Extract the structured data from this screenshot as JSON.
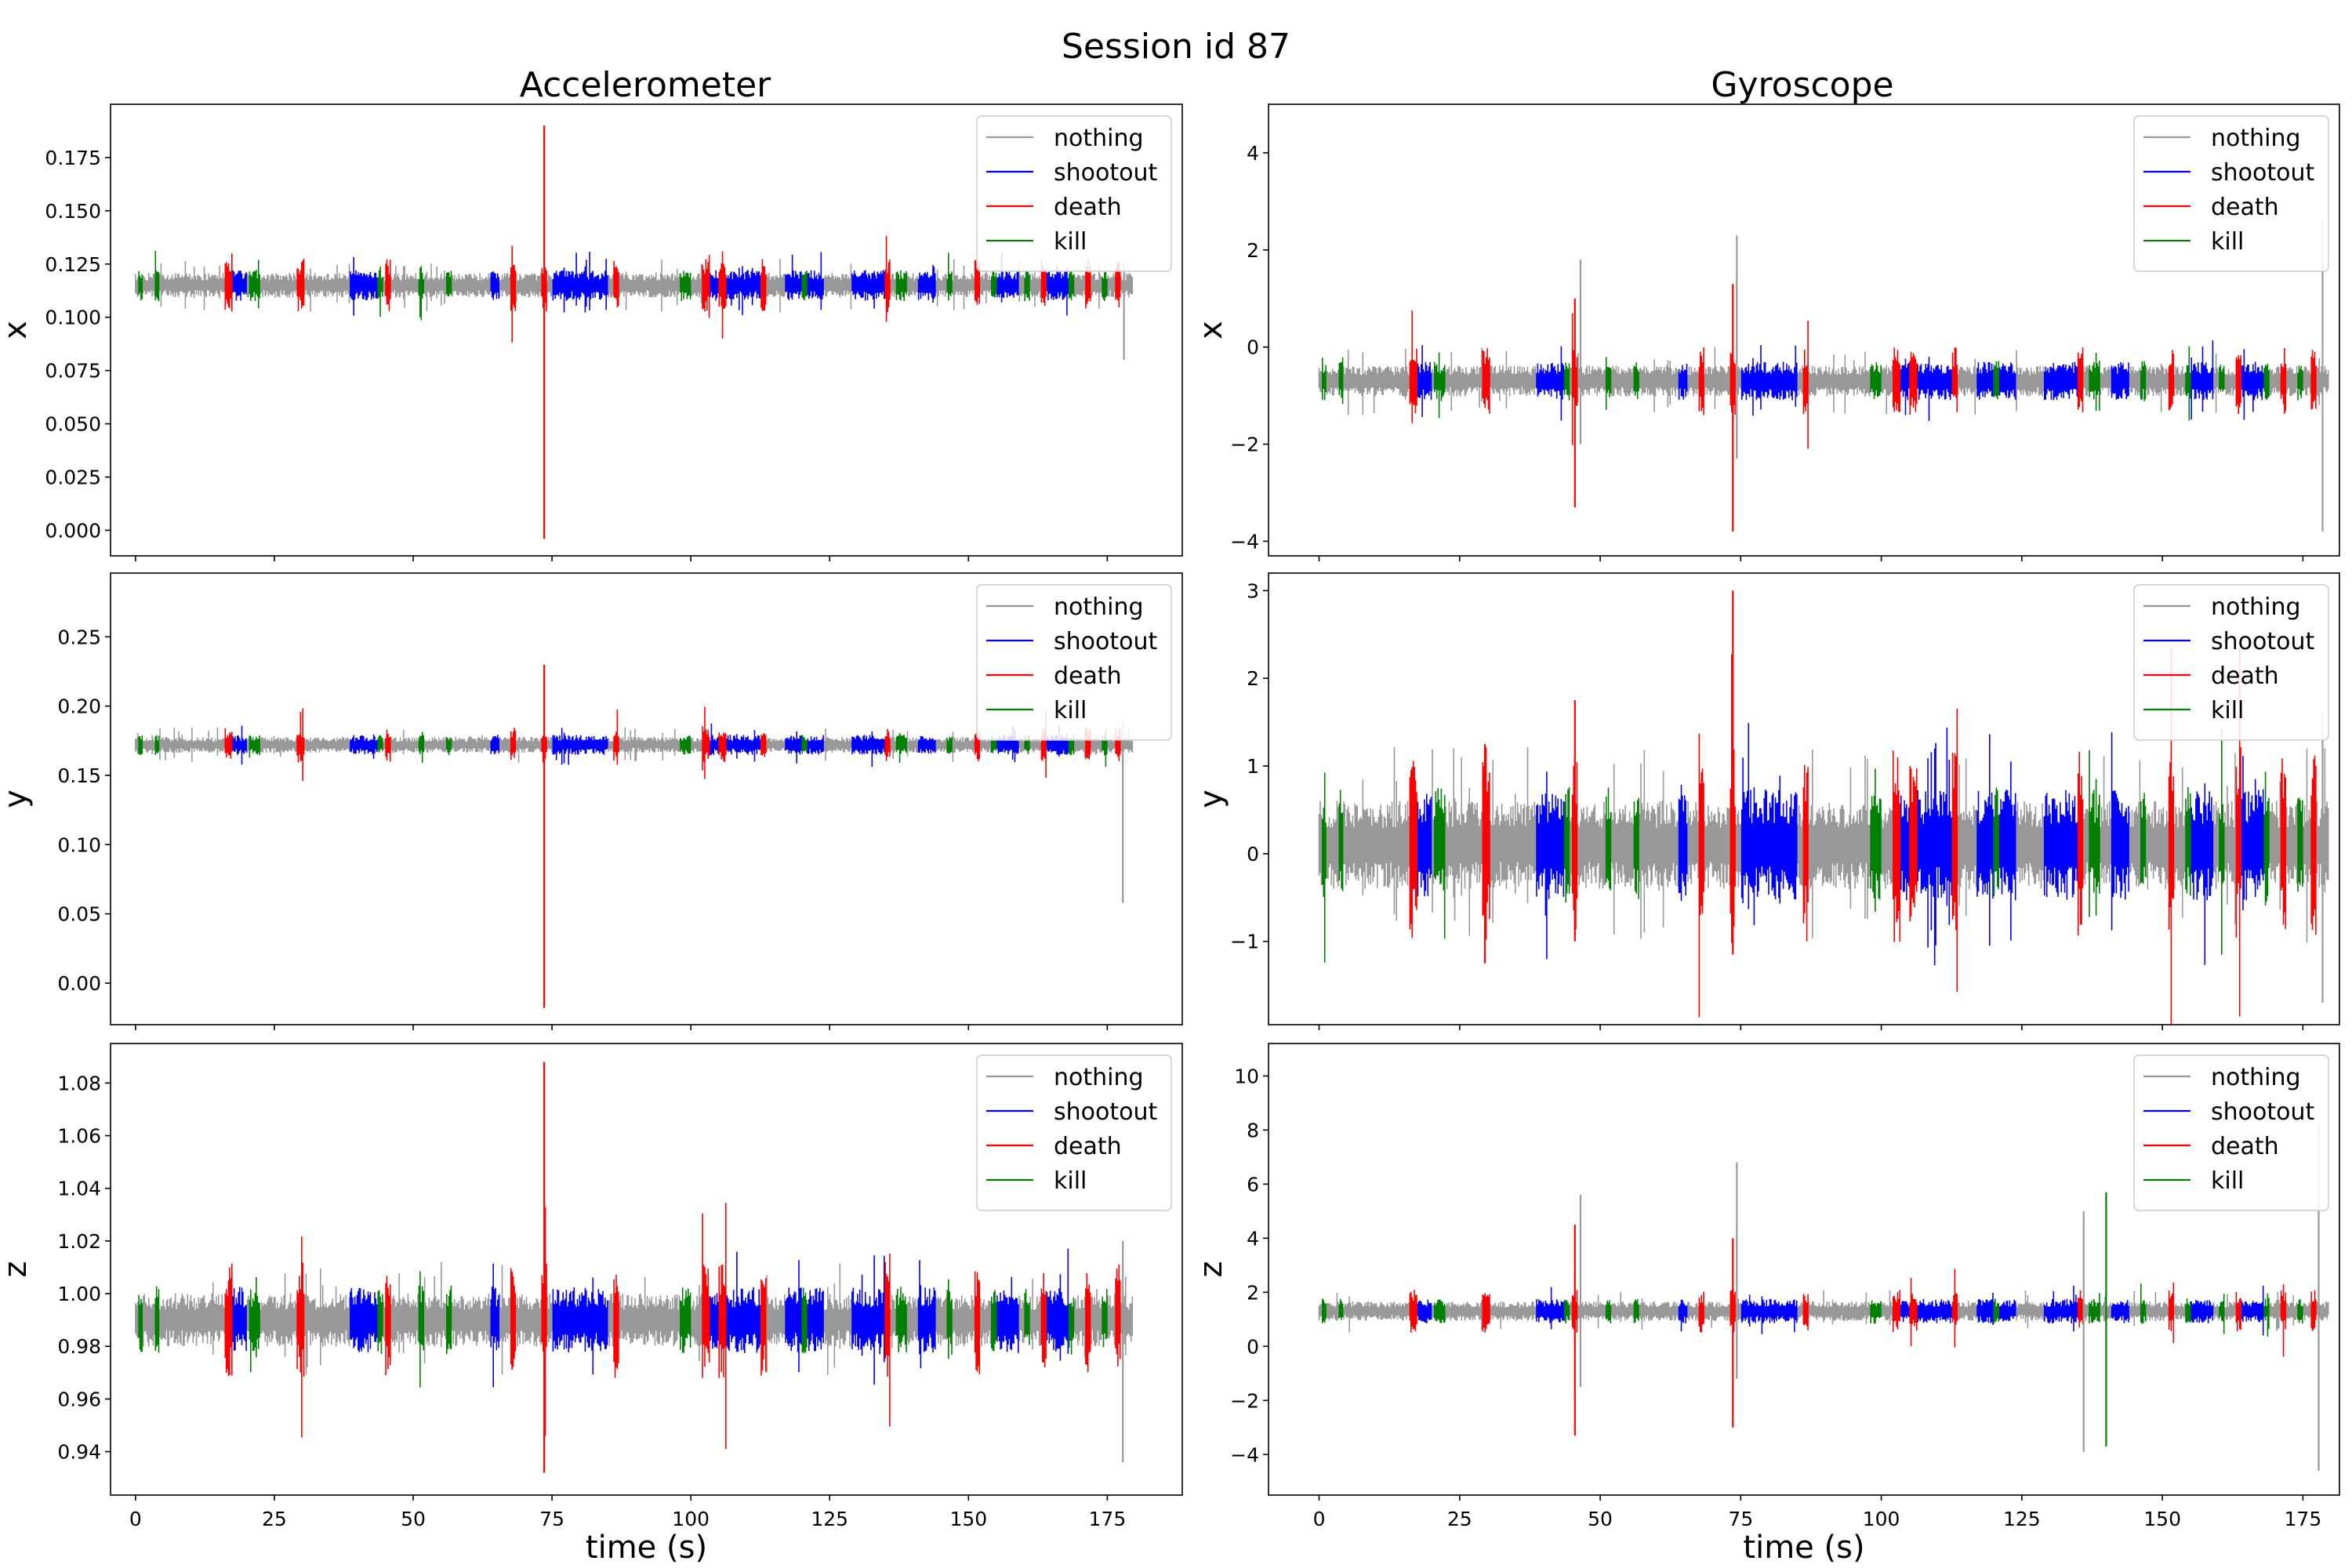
{
  "title": "Session id 87",
  "columns": [
    "Accelerometer",
    "Gyroscope"
  ],
  "colors": {
    "nothing": "#999999",
    "shootout": "#0000ff",
    "death": "#ff0000",
    "kill": "#008000"
  },
  "chart_data": [
    {
      "type": "line",
      "sensor": "Accelerometer",
      "ylabel": "x",
      "xlabel": "",
      "xlim": [
        -4.5,
        188.5
      ],
      "xticks": [
        0,
        25,
        50,
        75,
        100,
        125,
        150,
        175
      ],
      "xticklabels_shown": false,
      "ylim": [
        -0.012,
        0.2
      ],
      "yticks": [
        0.0,
        0.025,
        0.05,
        0.075,
        0.1,
        0.125,
        0.15,
        0.175
      ],
      "yticklabels": [
        "0.000",
        "0.025",
        "0.050",
        "0.075",
        "0.100",
        "0.125",
        "0.150",
        "0.175"
      ],
      "baseline": 0.115,
      "noise": 0.004,
      "legend": [
        "nothing",
        "shootout",
        "death",
        "kill"
      ],
      "legend_loc": "upper right",
      "spikes": [
        {
          "t": 73.6,
          "max": 0.19,
          "min": -0.004,
          "class": "death"
        },
        {
          "t": 178,
          "max": 0.125,
          "min": 0.08,
          "class": "nothing"
        }
      ]
    },
    {
      "type": "line",
      "sensor": "Gyroscope",
      "ylabel": "x",
      "xlabel": "",
      "xlim": [
        -9,
        181.5
      ],
      "xticks": [
        0,
        25,
        50,
        75,
        100,
        125,
        150,
        175
      ],
      "xticklabels_shown": false,
      "ylim": [
        -4.3,
        5.0
      ],
      "yticks": [
        -4,
        -2,
        0,
        2,
        4
      ],
      "yticklabels": [
        "−4",
        "−2",
        "0",
        "2",
        "4"
      ],
      "baseline": -0.7,
      "noise": 0.22,
      "legend": [
        "nothing",
        "shootout",
        "death",
        "kill"
      ],
      "legend_loc": "upper right",
      "spikes": [
        {
          "t": 45.5,
          "max": 1.0,
          "min": -3.3,
          "class": "death"
        },
        {
          "t": 46.5,
          "max": 1.8,
          "min": -2.0,
          "class": "nothing"
        },
        {
          "t": 73.6,
          "max": 1.3,
          "min": -3.8,
          "class": "death"
        },
        {
          "t": 74.3,
          "max": 2.3,
          "min": -2.3,
          "class": "nothing"
        },
        {
          "t": 178.5,
          "max": 2.6,
          "min": -3.8,
          "class": "nothing"
        }
      ]
    },
    {
      "type": "line",
      "sensor": "Accelerometer",
      "ylabel": "y",
      "xlabel": "",
      "xlim": [
        -4.5,
        188.5
      ],
      "xticks": [
        0,
        25,
        50,
        75,
        100,
        125,
        150,
        175
      ],
      "xticklabels_shown": false,
      "ylim": [
        -0.03,
        0.296
      ],
      "yticks": [
        0.0,
        0.05,
        0.1,
        0.15,
        0.2,
        0.25
      ],
      "yticklabels": [
        "0.00",
        "0.05",
        "0.10",
        "0.15",
        "0.20",
        "0.25"
      ],
      "baseline": 0.172,
      "noise": 0.004,
      "legend": [
        "nothing",
        "shootout",
        "death",
        "kill"
      ],
      "legend_loc": "upper right",
      "spikes": [
        {
          "t": 73.6,
          "max": 0.23,
          "min": -0.018,
          "class": "death"
        },
        {
          "t": 177.8,
          "max": 0.19,
          "min": 0.058,
          "class": "nothing"
        }
      ]
    },
    {
      "type": "line",
      "sensor": "Gyroscope",
      "ylabel": "y",
      "xlabel": "",
      "xlim": [
        -9,
        181.5
      ],
      "xticks": [
        0,
        25,
        50,
        75,
        100,
        125,
        150,
        175
      ],
      "xticklabels_shown": false,
      "ylim": [
        -1.95,
        3.2
      ],
      "yticks": [
        -1,
        0,
        1,
        2,
        3
      ],
      "yticklabels": [
        "−1",
        "0",
        "1",
        "2",
        "3"
      ],
      "baseline": 0.1,
      "noise": 0.35,
      "legend": [
        "nothing",
        "shootout",
        "death",
        "kill"
      ],
      "legend_loc": "upper right",
      "spikes": [
        {
          "t": 45.5,
          "max": 1.75,
          "min": -1.0,
          "class": "death"
        },
        {
          "t": 73.6,
          "max": 3.0,
          "min": -1.15,
          "class": "death"
        },
        {
          "t": 29.5,
          "max": 1.25,
          "min": -1.25,
          "class": "death"
        },
        {
          "t": 178.5,
          "max": 1.6,
          "min": -1.7,
          "class": "nothing"
        }
      ]
    },
    {
      "type": "line",
      "sensor": "Accelerometer",
      "ylabel": "z",
      "xlabel": "time (s)",
      "xlim": [
        -4.5,
        188.5
      ],
      "xticks": [
        0,
        25,
        50,
        75,
        100,
        125,
        150,
        175
      ],
      "xticklabels_shown": true,
      "ylim": [
        0.9235,
        1.095
      ],
      "yticks": [
        0.94,
        0.96,
        0.98,
        1.0,
        1.02,
        1.04,
        1.06,
        1.08
      ],
      "yticklabels": [
        "0.94",
        "0.96",
        "0.98",
        "1.00",
        "1.02",
        "1.04",
        "1.06",
        "1.08"
      ],
      "baseline": 0.99,
      "noise": 0.007,
      "legend": [
        "nothing",
        "shootout",
        "death",
        "kill"
      ],
      "legend_loc": "upper right",
      "spikes": [
        {
          "t": 73.6,
          "max": 1.088,
          "min": 0.932,
          "class": "death"
        },
        {
          "t": 177.8,
          "max": 1.02,
          "min": 0.936,
          "class": "nothing"
        }
      ]
    },
    {
      "type": "line",
      "sensor": "Gyroscope",
      "ylabel": "z",
      "xlabel": "time (s)",
      "xlim": [
        -9,
        181.5
      ],
      "xticks": [
        0,
        25,
        50,
        75,
        100,
        125,
        150,
        175
      ],
      "xticklabels_shown": true,
      "ylim": [
        -5.5,
        11.2
      ],
      "yticks": [
        -4,
        -2,
        0,
        2,
        4,
        6,
        8,
        10
      ],
      "yticklabels": [
        "−4",
        "−2",
        "0",
        "2",
        "4",
        "6",
        "8",
        "10"
      ],
      "baseline": 1.3,
      "noise": 0.25,
      "legend": [
        "nothing",
        "shootout",
        "death",
        "kill"
      ],
      "legend_loc": "upper right",
      "spikes": [
        {
          "t": 45.5,
          "max": 4.5,
          "min": -3.3,
          "class": "death"
        },
        {
          "t": 46.5,
          "max": 5.6,
          "min": -1.5,
          "class": "nothing"
        },
        {
          "t": 73.6,
          "max": 4.0,
          "min": -3.0,
          "class": "death"
        },
        {
          "t": 74.3,
          "max": 6.8,
          "min": -1.2,
          "class": "nothing"
        },
        {
          "t": 136,
          "max": 5.0,
          "min": -3.9,
          "class": "nothing"
        },
        {
          "t": 140,
          "max": 5.7,
          "min": -3.7,
          "class": "kill"
        },
        {
          "t": 177.8,
          "max": 8.2,
          "min": -4.6,
          "class": "nothing"
        }
      ]
    }
  ],
  "event_segments": [
    {
      "start": 0.5,
      "end": 1.2,
      "class": "kill"
    },
    {
      "start": 3.5,
      "end": 4.3,
      "class": "kill"
    },
    {
      "start": 16,
      "end": 17.5,
      "class": "death"
    },
    {
      "start": 17.5,
      "end": 20,
      "class": "shootout"
    },
    {
      "start": 20.5,
      "end": 22.5,
      "class": "kill"
    },
    {
      "start": 29,
      "end": 30.5,
      "class": "death"
    },
    {
      "start": 38.5,
      "end": 43.5,
      "class": "shootout"
    },
    {
      "start": 43.5,
      "end": 44.5,
      "class": "kill"
    },
    {
      "start": 45,
      "end": 46,
      "class": "death"
    },
    {
      "start": 51,
      "end": 52,
      "class": "kill"
    },
    {
      "start": 56,
      "end": 57,
      "class": "kill"
    },
    {
      "start": 64,
      "end": 65.5,
      "class": "shootout"
    },
    {
      "start": 67.5,
      "end": 68.5,
      "class": "death"
    },
    {
      "start": 73,
      "end": 74,
      "class": "death"
    },
    {
      "start": 75,
      "end": 85,
      "class": "shootout"
    },
    {
      "start": 86,
      "end": 87,
      "class": "death"
    },
    {
      "start": 98,
      "end": 100,
      "class": "kill"
    },
    {
      "start": 102,
      "end": 103.5,
      "class": "death"
    },
    {
      "start": 103.5,
      "end": 105,
      "class": "shootout"
    },
    {
      "start": 105,
      "end": 106.5,
      "class": "death"
    },
    {
      "start": 106.5,
      "end": 112.5,
      "class": "shootout"
    },
    {
      "start": 112.5,
      "end": 113.5,
      "class": "death"
    },
    {
      "start": 117,
      "end": 120,
      "class": "shootout"
    },
    {
      "start": 120,
      "end": 121,
      "class": "kill"
    },
    {
      "start": 121,
      "end": 124,
      "class": "shootout"
    },
    {
      "start": 129,
      "end": 135,
      "class": "shootout"
    },
    {
      "start": 135,
      "end": 136,
      "class": "death"
    },
    {
      "start": 137,
      "end": 139,
      "class": "kill"
    },
    {
      "start": 141,
      "end": 144,
      "class": "shootout"
    },
    {
      "start": 146,
      "end": 147,
      "class": "kill"
    },
    {
      "start": 151,
      "end": 152,
      "class": "death"
    },
    {
      "start": 154,
      "end": 155,
      "class": "kill"
    },
    {
      "start": 155,
      "end": 159,
      "class": "shootout"
    },
    {
      "start": 160,
      "end": 161,
      "class": "kill"
    },
    {
      "start": 163,
      "end": 164,
      "class": "death"
    },
    {
      "start": 164,
      "end": 168,
      "class": "shootout"
    },
    {
      "start": 168,
      "end": 169,
      "class": "kill"
    },
    {
      "start": 171,
      "end": 172,
      "class": "death"
    },
    {
      "start": 174,
      "end": 175,
      "class": "kill"
    },
    {
      "start": 176.5,
      "end": 177.5,
      "class": "death"
    }
  ]
}
